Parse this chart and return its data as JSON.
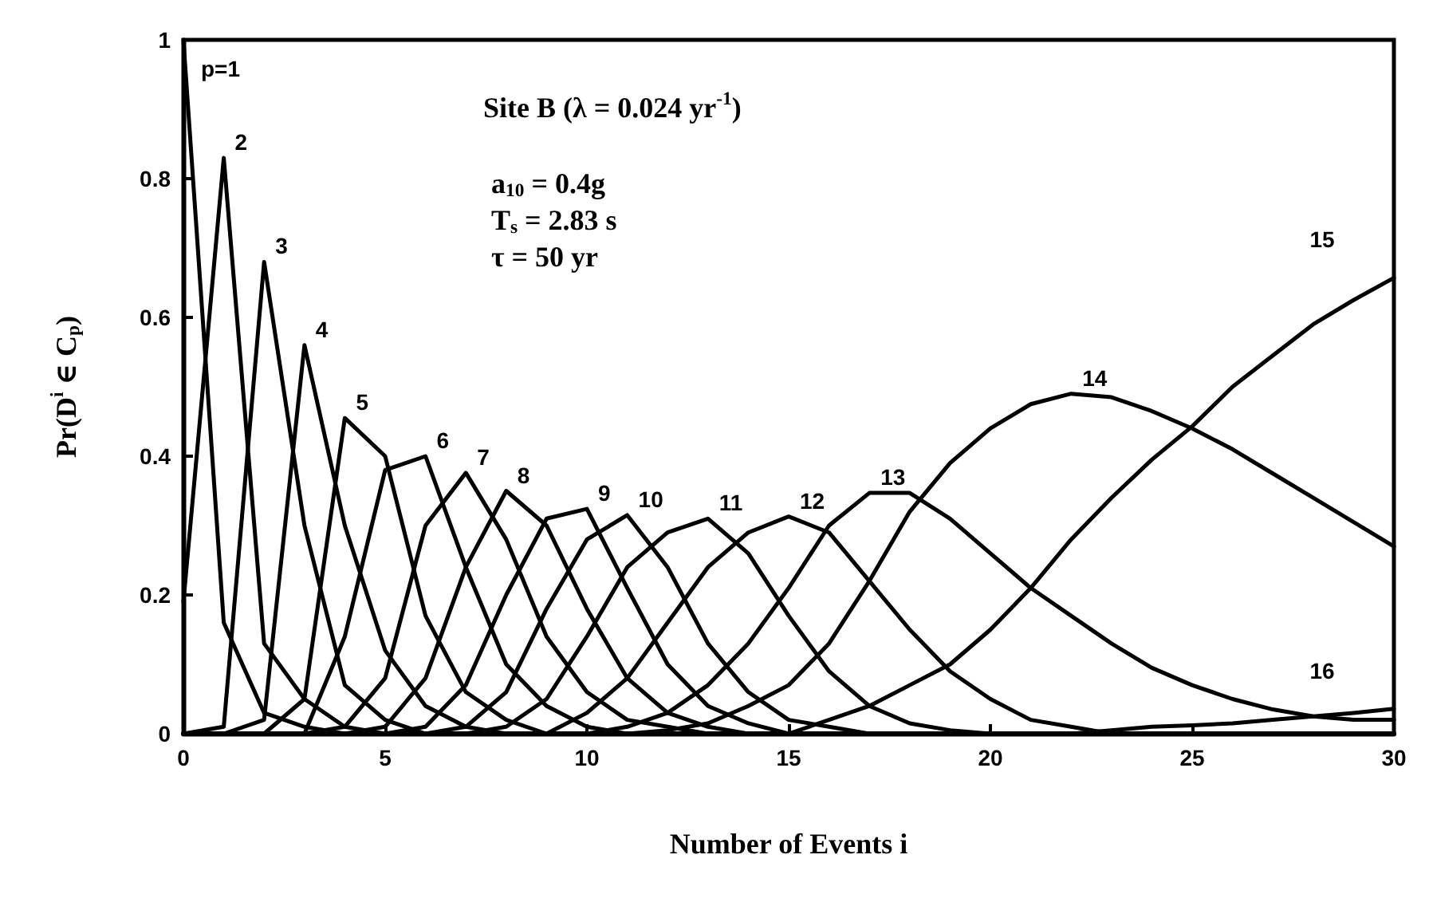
{
  "chart_data": {
    "type": "line",
    "xlabel": "Number of Events i",
    "ylabel": "Pr(D$^{i}$ ∈ C$_{p}$)",
    "annotations": [
      "Site B (λ = 0.024 yr$^{-1}$)",
      "a$_{10}$ = 0.4g",
      "T$_{s}$ = 2.83 s",
      "τ = 50 yr"
    ],
    "x": [
      0,
      1,
      2,
      3,
      4,
      5,
      6,
      7,
      8,
      9,
      10,
      11,
      12,
      13,
      14,
      15,
      16,
      17,
      18,
      19,
      20,
      21,
      22,
      23,
      24,
      25,
      26,
      27,
      28,
      29,
      30
    ],
    "series": [
      {
        "name": "p=1",
        "color": "#000000",
        "values": [
          1.0,
          0.16,
          0.03,
          0.01,
          0,
          0,
          0,
          0,
          0,
          0,
          0,
          0,
          0,
          0,
          0,
          0,
          0,
          0,
          0,
          0,
          0,
          0,
          0,
          0,
          0,
          0,
          0,
          0,
          0,
          0,
          0
        ]
      },
      {
        "name": "2",
        "color": "#000000",
        "values": [
          0.19,
          0.83,
          0.13,
          0.05,
          0.01,
          0,
          0,
          0,
          0,
          0,
          0,
          0,
          0,
          0,
          0,
          0,
          0,
          0,
          0,
          0,
          0,
          0,
          0,
          0,
          0,
          0,
          0,
          0,
          0,
          0,
          0
        ]
      },
      {
        "name": "3",
        "color": "#000000",
        "values": [
          0,
          0.01,
          0.68,
          0.3,
          0.07,
          0.02,
          0,
          0,
          0,
          0,
          0,
          0,
          0,
          0,
          0,
          0,
          0,
          0,
          0,
          0,
          0,
          0,
          0,
          0,
          0,
          0,
          0,
          0,
          0,
          0,
          0
        ]
      },
      {
        "name": "4",
        "color": "#000000",
        "values": [
          0,
          0,
          0.02,
          0.56,
          0.3,
          0.12,
          0.04,
          0.01,
          0,
          0,
          0,
          0,
          0,
          0,
          0,
          0,
          0,
          0,
          0,
          0,
          0,
          0,
          0,
          0,
          0,
          0,
          0,
          0,
          0,
          0,
          0
        ]
      },
      {
        "name": "5",
        "color": "#000000",
        "values": [
          0,
          0,
          0,
          0.05,
          0.455,
          0.4,
          0.17,
          0.06,
          0.02,
          0,
          0,
          0,
          0,
          0,
          0,
          0,
          0,
          0,
          0,
          0,
          0,
          0,
          0,
          0,
          0,
          0,
          0,
          0,
          0,
          0,
          0
        ]
      },
      {
        "name": "6",
        "color": "#000000",
        "values": [
          0,
          0,
          0,
          0,
          0.14,
          0.38,
          0.4,
          0.24,
          0.1,
          0.04,
          0.01,
          0,
          0,
          0,
          0,
          0,
          0,
          0,
          0,
          0,
          0,
          0,
          0,
          0,
          0,
          0,
          0,
          0,
          0,
          0,
          0
        ]
      },
      {
        "name": "7",
        "color": "#000000",
        "values": [
          0,
          0,
          0,
          0,
          0.01,
          0.08,
          0.3,
          0.376,
          0.28,
          0.14,
          0.06,
          0.02,
          0.01,
          0,
          0,
          0,
          0,
          0,
          0,
          0,
          0,
          0,
          0,
          0,
          0,
          0,
          0,
          0,
          0,
          0,
          0
        ]
      },
      {
        "name": "8",
        "color": "#000000",
        "values": [
          0,
          0,
          0,
          0,
          0,
          0.01,
          0.08,
          0.24,
          0.35,
          0.3,
          0.18,
          0.08,
          0.03,
          0.01,
          0,
          0,
          0,
          0,
          0,
          0,
          0,
          0,
          0,
          0,
          0,
          0,
          0,
          0,
          0,
          0,
          0
        ]
      },
      {
        "name": "9",
        "color": "#000000",
        "values": [
          0,
          0,
          0,
          0,
          0,
          0,
          0.01,
          0.07,
          0.2,
          0.31,
          0.324,
          0.21,
          0.1,
          0.04,
          0.015,
          0,
          0,
          0,
          0,
          0,
          0,
          0,
          0,
          0,
          0,
          0,
          0,
          0,
          0,
          0,
          0
        ]
      },
      {
        "name": "10",
        "color": "#000000",
        "values": [
          0,
          0,
          0,
          0,
          0,
          0,
          0,
          0.01,
          0.06,
          0.18,
          0.28,
          0.315,
          0.24,
          0.13,
          0.06,
          0.02,
          0.01,
          0,
          0,
          0,
          0,
          0,
          0,
          0,
          0,
          0,
          0,
          0,
          0,
          0,
          0
        ]
      },
      {
        "name": "11",
        "color": "#000000",
        "values": [
          0,
          0,
          0,
          0,
          0,
          0,
          0,
          0,
          0.01,
          0.05,
          0.14,
          0.24,
          0.29,
          0.31,
          0.26,
          0.17,
          0.09,
          0.04,
          0.015,
          0.005,
          0,
          0,
          0,
          0,
          0,
          0,
          0,
          0,
          0,
          0,
          0
        ]
      },
      {
        "name": "12",
        "color": "#000000",
        "values": [
          0,
          0,
          0,
          0,
          0,
          0,
          0,
          0,
          0,
          0,
          0.03,
          0.08,
          0.16,
          0.24,
          0.29,
          0.313,
          0.29,
          0.22,
          0.15,
          0.09,
          0.05,
          0.02,
          0.01,
          0,
          0,
          0,
          0,
          0,
          0,
          0,
          0
        ]
      },
      {
        "name": "13",
        "color": "#000000",
        "values": [
          0,
          0,
          0,
          0,
          0,
          0,
          0,
          0,
          0,
          0,
          0,
          0.01,
          0.03,
          0.07,
          0.13,
          0.21,
          0.3,
          0.347,
          0.347,
          0.31,
          0.26,
          0.21,
          0.17,
          0.13,
          0.095,
          0.07,
          0.05,
          0.035,
          0.025,
          0.02,
          0.02
        ]
      },
      {
        "name": "14",
        "color": "#000000",
        "values": [
          0,
          0,
          0,
          0,
          0,
          0,
          0,
          0,
          0,
          0,
          0,
          0,
          0.005,
          0.015,
          0.04,
          0.07,
          0.13,
          0.22,
          0.32,
          0.39,
          0.44,
          0.475,
          0.49,
          0.485,
          0.465,
          0.44,
          0.41,
          0.375,
          0.34,
          0.305,
          0.27
        ]
      },
      {
        "name": "15",
        "color": "#000000",
        "values": [
          0,
          0,
          0,
          0,
          0,
          0,
          0,
          0,
          0,
          0,
          0,
          0,
          0,
          0,
          0,
          0,
          0.02,
          0.04,
          0.07,
          0.1,
          0.15,
          0.21,
          0.28,
          0.34,
          0.395,
          0.443,
          0.5,
          0.545,
          0.59,
          0.625,
          0.657
        ]
      },
      {
        "name": "16",
        "color": "#000000",
        "values": [
          0,
          0,
          0,
          0,
          0,
          0,
          0,
          0,
          0,
          0,
          0,
          0,
          0,
          0,
          0,
          0,
          0,
          0,
          0,
          0,
          0,
          0,
          0,
          0.005,
          0.01,
          0.012,
          0.015,
          0.02,
          0.025,
          0.03,
          0.036
        ]
      }
    ],
    "xlim": [
      0,
      30
    ],
    "xticks": [
      0,
      5,
      10,
      15,
      20,
      25,
      30
    ],
    "ylim": [
      0,
      1
    ],
    "yticks": [
      0,
      0.2,
      0.4,
      0.6,
      0.8,
      1
    ]
  }
}
